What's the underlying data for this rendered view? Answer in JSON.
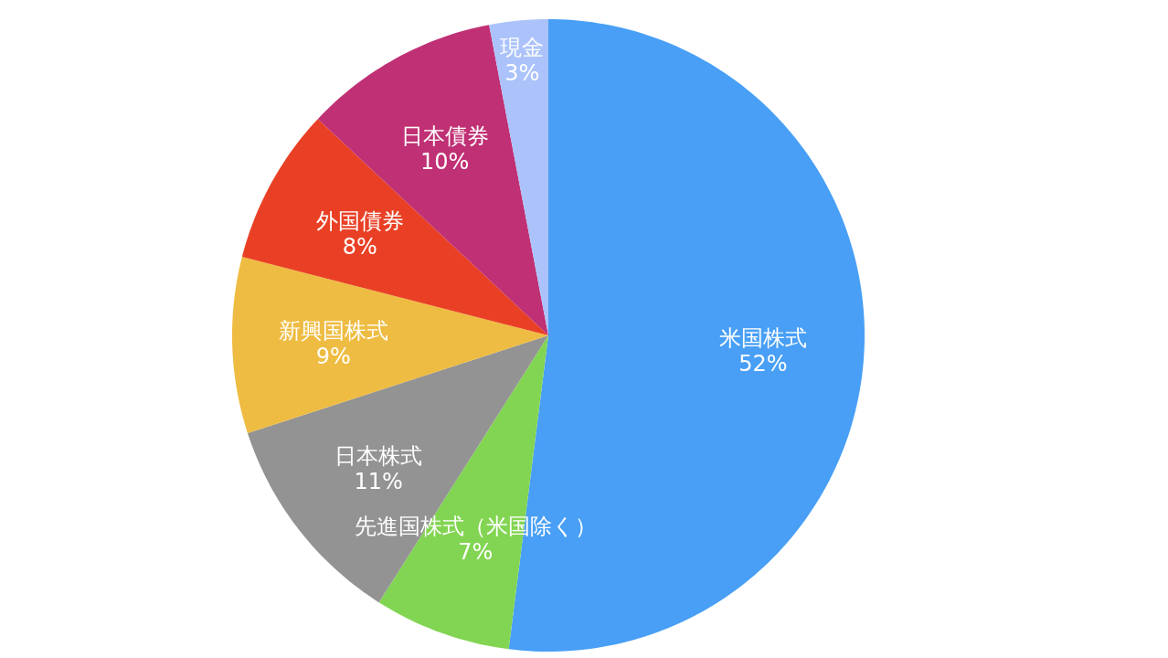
{
  "chart_data": {
    "type": "pie",
    "categories": [
      "米国株式",
      "先進国株式（米国除く）",
      "日本株式",
      "新興国株式",
      "外国債券",
      "日本債券",
      "現金"
    ],
    "values": [
      52,
      7,
      11,
      9,
      8,
      10,
      3
    ],
    "value_labels": [
      "52%",
      "7%",
      "11%",
      "9%",
      "8%",
      "10%",
      "3%"
    ],
    "colors": [
      "#489ff5",
      "#82d552",
      "#939393",
      "#eebc42",
      "#e94025",
      "#c03074",
      "#abc3fa"
    ]
  }
}
